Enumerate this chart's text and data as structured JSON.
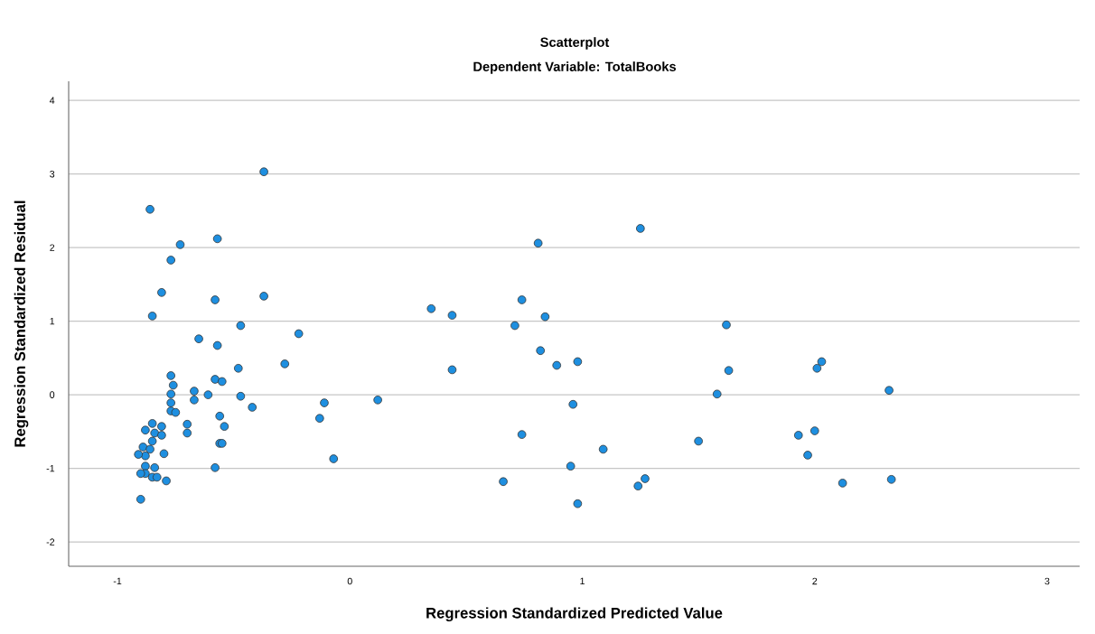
{
  "chart_data": {
    "type": "scatter",
    "title": "Scatterplot",
    "subtitle": "Dependent Variable: TotalBooks",
    "xlabel": "Regression Standardized Predicted Value",
    "ylabel": "Regression Standardized Residual",
    "x": [
      -0.37,
      -0.86,
      -0.73,
      -0.57,
      -0.77,
      -0.81,
      -0.58,
      -0.37,
      -0.85,
      -0.47,
      -0.65,
      -0.57,
      -0.22,
      -0.28,
      -0.48,
      -0.77,
      -0.76,
      -0.58,
      -0.55,
      -0.77,
      -0.67,
      -0.61,
      -0.47,
      -0.67,
      -0.77,
      -0.42,
      -0.77,
      -0.75,
      -0.56,
      -0.54,
      -0.7,
      -0.7,
      -0.56,
      -0.55,
      -0.58,
      -0.85,
      -0.81,
      -0.88,
      -0.84,
      -0.81,
      -0.85,
      -0.8,
      -0.89,
      -0.86,
      -0.88,
      -0.91,
      -0.88,
      -0.84,
      -0.88,
      -0.9,
      -0.85,
      -0.83,
      -0.79,
      -0.9,
      0.12,
      -0.11,
      -0.13,
      -0.07,
      0.35,
      0.44,
      0.44,
      0.71,
      0.74,
      0.84,
      0.81,
      0.82,
      0.89,
      0.98,
      0.96,
      0.74,
      0.66,
      0.95,
      1.09,
      0.98,
      1.25,
      1.27,
      1.24,
      1.5,
      1.62,
      1.63,
      1.58,
      2.03,
      2.01,
      1.93,
      2.0,
      1.97,
      2.12,
      2.32,
      2.33
    ],
    "values": [
      3.03,
      2.52,
      2.04,
      2.12,
      1.83,
      1.39,
      1.29,
      1.34,
      1.07,
      0.94,
      0.76,
      0.67,
      0.83,
      0.42,
      0.36,
      0.26,
      0.13,
      0.21,
      0.18,
      0.01,
      0.05,
      0.0,
      -0.02,
      -0.07,
      -0.11,
      -0.17,
      -0.22,
      -0.24,
      -0.29,
      -0.43,
      -0.4,
      -0.52,
      -0.66,
      -0.66,
      -0.99,
      -0.39,
      -0.43,
      -0.48,
      -0.52,
      -0.55,
      -0.63,
      -0.8,
      -0.71,
      -0.74,
      -0.83,
      -0.81,
      -0.97,
      -0.99,
      -1.07,
      -1.07,
      -1.12,
      -1.12,
      -1.17,
      -1.42,
      -0.07,
      -0.11,
      -0.32,
      -0.87,
      1.17,
      1.08,
      0.34,
      0.94,
      1.29,
      1.06,
      2.06,
      0.6,
      0.4,
      0.45,
      -0.13,
      -0.54,
      -1.18,
      -0.97,
      -0.74,
      -1.48,
      2.26,
      -1.14,
      -1.24,
      -0.63,
      0.95,
      0.33,
      0.01,
      0.45,
      0.36,
      -0.55,
      -0.49,
      -0.82,
      -1.2,
      0.06,
      -1.15
    ],
    "color": "#1e8fe0",
    "xlim": [
      -1.21,
      3.14
    ],
    "ylim": [
      -2.33,
      4.26
    ],
    "xticks": [
      -1,
      0,
      1,
      2,
      3
    ],
    "yticks": [
      -2,
      -1,
      0,
      1,
      2,
      3,
      4
    ],
    "grid": "y"
  }
}
